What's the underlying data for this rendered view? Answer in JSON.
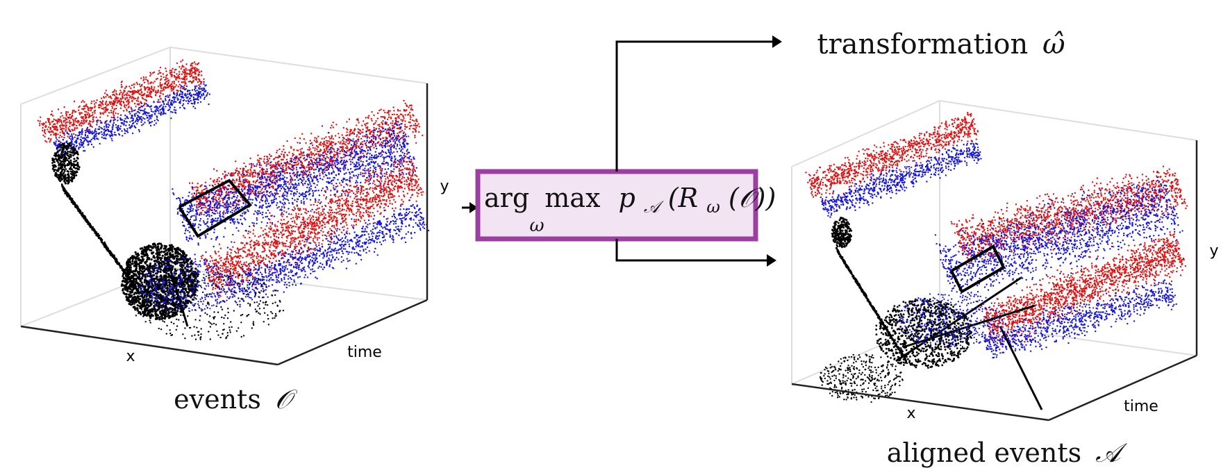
{
  "left_plot": {
    "axis_x": "x",
    "axis_y": "y",
    "axis_t": "time",
    "caption_text": "events",
    "caption_symbol": "𝒪"
  },
  "right_plot": {
    "axis_x": "x",
    "axis_y": "y",
    "axis_t": "time",
    "caption_text": "aligned events",
    "caption_symbol": "𝒜"
  },
  "optimizer": {
    "arg": "arg",
    "max": "max",
    "sub": "ω",
    "expr_p": "p",
    "expr_psub": "𝒜",
    "expr_open": "(R",
    "expr_rsub": "ω",
    "expr_close": "(𝒪))"
  },
  "output": {
    "transformation_text": "transformation",
    "transformation_symbol": "ω̂"
  },
  "colors": {
    "box_border": "#9b3fa0",
    "box_fill": "#f3e4f3",
    "positive_events": "#e01010",
    "negative_events": "#1515e0",
    "structure": "#000000",
    "axis_frame": "#dddddd"
  }
}
